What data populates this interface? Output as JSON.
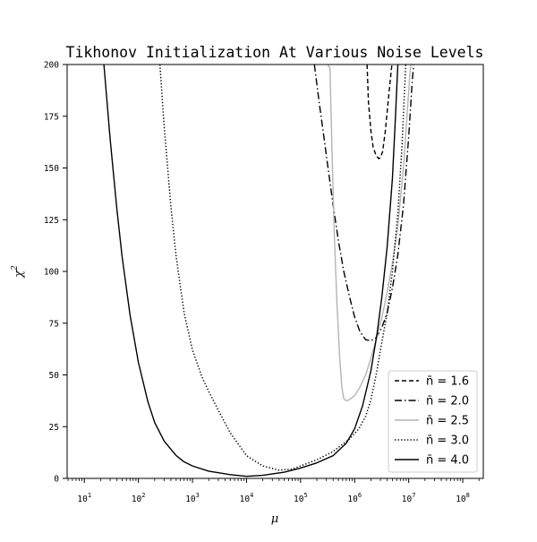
{
  "chart_data": {
    "type": "line",
    "title": "Tikhonov Initialization At Various Noise Levels",
    "xlabel": "μ",
    "ylabel": "χ",
    "ylabel_superscript": "2",
    "xscale": "log",
    "xlim": [
      4.8,
      240000000
    ],
    "ylim": [
      0,
      200
    ],
    "yticks": [
      0,
      25,
      50,
      75,
      100,
      125,
      150,
      175,
      200
    ],
    "xticks": [
      {
        "value": 10,
        "base": "10",
        "exp": "1"
      },
      {
        "value": 100,
        "base": "10",
        "exp": "2"
      },
      {
        "value": 1000,
        "base": "10",
        "exp": "3"
      },
      {
        "value": 10000,
        "base": "10",
        "exp": "4"
      },
      {
        "value": 100000,
        "base": "10",
        "exp": "5"
      },
      {
        "value": 1000000,
        "base": "10",
        "exp": "6"
      },
      {
        "value": 10000000,
        "base": "10",
        "exp": "7"
      },
      {
        "value": 100000000,
        "base": "10",
        "exp": "8"
      }
    ],
    "grid": false,
    "legend_position": "lower-right",
    "series": [
      {
        "name": "n̄ = 1.6",
        "color": "#000000",
        "style": "dashed",
        "x": [
          1700000,
          1800000,
          2000000,
          2200000,
          2500000,
          2800000,
          3000000,
          3300000,
          3700000,
          4200000,
          4800000,
          5200000
        ],
        "y": [
          200,
          182,
          168,
          160,
          156,
          154.5,
          155,
          158,
          168,
          183,
          198,
          205
        ]
      },
      {
        "name": "n̄ = 2.0",
        "color": "#000000",
        "style": "dashdot",
        "x": [
          180000,
          220000,
          270000,
          330000,
          400000,
          500000,
          630000,
          800000,
          1000000,
          1250000,
          1600000,
          2000000,
          2500000,
          3200000,
          4000000,
          5000000,
          6300000,
          8000000,
          10000000,
          11500000,
          12800000
        ],
        "y": [
          200,
          182,
          165,
          148,
          132,
          115,
          100,
          88,
          78,
          71,
          67,
          66.5,
          68,
          73,
          80,
          92,
          108,
          132,
          165,
          190,
          205
        ]
      },
      {
        "name": "n̄ = 2.5",
        "color": "#b4b4b4",
        "style": "solid",
        "x": [
          320000,
          350000,
          380000,
          420000,
          470000,
          530000,
          580000,
          630000,
          700000,
          800000,
          1000000,
          1250000,
          1600000,
          2000000,
          2500000,
          3200000,
          4000000,
          5000000,
          6300000,
          8000000,
          9300000,
          10500000,
          11500000
        ],
        "y": [
          200,
          198,
          160,
          118,
          85,
          58,
          44,
          38.5,
          37.5,
          38,
          40,
          44,
          50,
          58,
          67,
          78,
          90,
          104,
          122,
          150,
          175,
          195,
          205
        ]
      },
      {
        "name": "n̄ = 3.0",
        "color": "#000000",
        "style": "dotted",
        "x": [
          250,
          300,
          400,
          500,
          700,
          1000,
          1500,
          2000,
          3000,
          5000,
          10000,
          20000,
          40000,
          70000,
          100000,
          200000,
          400000,
          800000,
          1200000,
          1600000,
          2000000,
          2500000,
          3000000,
          4000000,
          5000000,
          6300000,
          7500000,
          8300000,
          9000000
        ],
        "y": [
          200,
          170,
          131,
          107,
          80,
          62,
          49,
          42,
          33,
          22,
          11,
          6,
          4,
          4.5,
          6,
          9,
          13,
          19,
          24,
          30,
          38,
          50,
          62,
          80,
          100,
          128,
          160,
          185,
          205
        ]
      },
      {
        "name": "n̄ = 4.0",
        "color": "#000000",
        "style": "solid",
        "x": [
          23,
          30,
          40,
          50,
          70,
          100,
          150,
          200,
          300,
          500,
          700,
          1000,
          2000,
          5000,
          10000,
          20000,
          50000,
          100000,
          200000,
          400000,
          700000,
          1000000,
          1400000,
          2000000,
          2600000,
          3200000,
          4000000,
          5000000,
          5700000,
          6300000
        ],
        "y": [
          200,
          164,
          130,
          107,
          79,
          56,
          37,
          27,
          18,
          11,
          8,
          6,
          3.5,
          1.8,
          1,
          1.5,
          3,
          5,
          7.5,
          11,
          17,
          24,
          35,
          52,
          70,
          88,
          112,
          145,
          175,
          200
        ]
      }
    ]
  }
}
